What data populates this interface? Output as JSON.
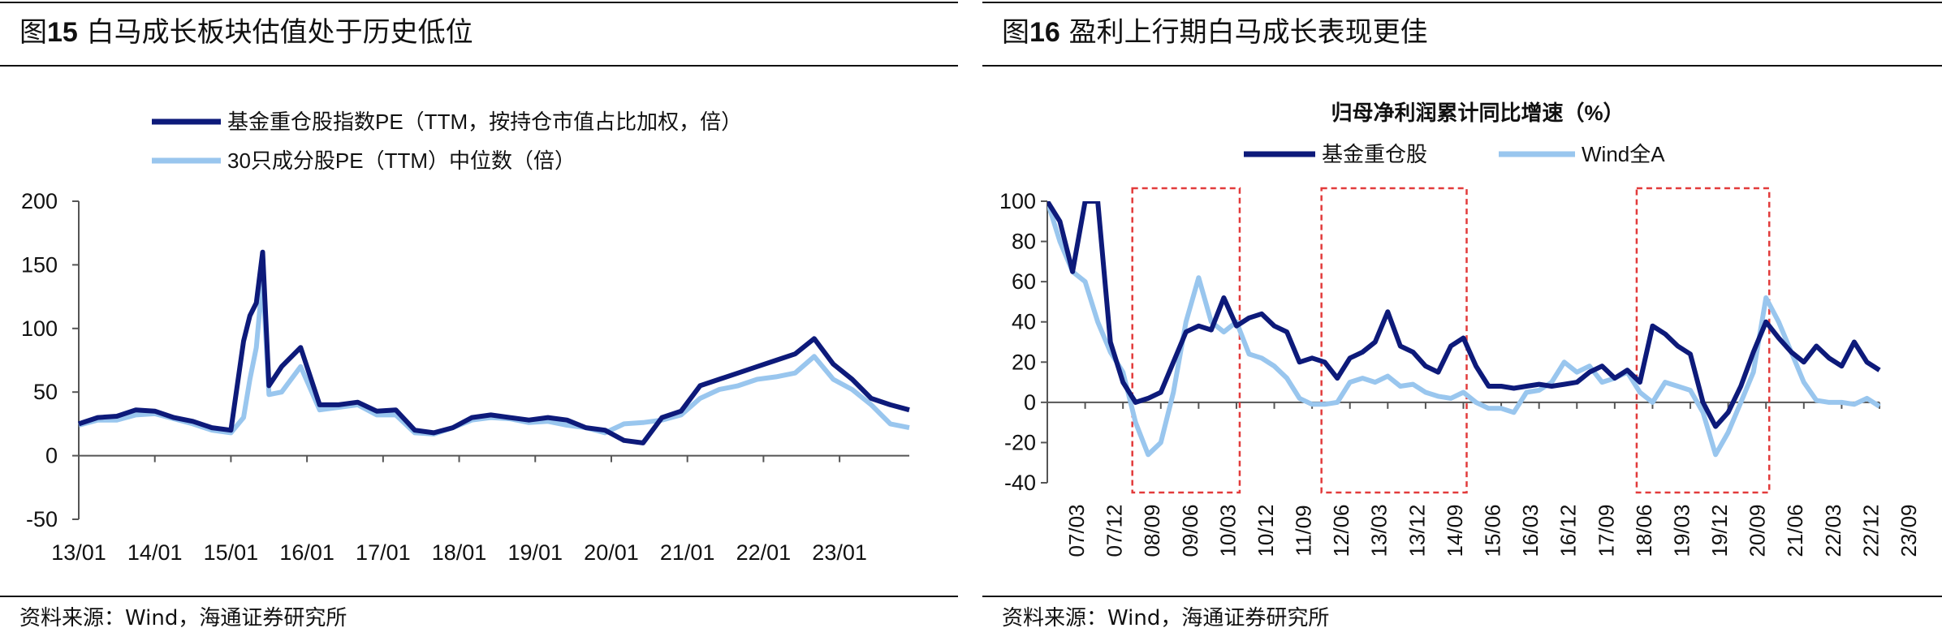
{
  "left": {
    "figure_label": "图",
    "figure_number": "15",
    "figure_title": "白马成长板块估值处于历史低位",
    "source": "资料来源：Wind，海通证券研究所"
  },
  "right": {
    "figure_label": "图",
    "figure_number": "16",
    "figure_title": "盈利上行期白马成长表现更佳",
    "source": "资料来源：Wind，海通证券研究所"
  },
  "chart_data": [
    {
      "type": "line",
      "title": "",
      "xlabel": "",
      "ylabel": "",
      "ylim": [
        -50,
        200
      ],
      "yticks": [
        "200",
        "150",
        "100",
        "50",
        "0",
        "-50"
      ],
      "xticks": [
        "13/01",
        "14/01",
        "15/01",
        "16/01",
        "17/01",
        "18/01",
        "19/01",
        "20/01",
        "21/01",
        "22/01",
        "23/01"
      ],
      "grid": false,
      "legend_position": "top",
      "x": [
        "13/01",
        "13/04",
        "13/07",
        "13/10",
        "14/01",
        "14/04",
        "14/07",
        "14/10",
        "15/01",
        "15/03",
        "15/04",
        "15/05",
        "15/06",
        "15/07",
        "15/09",
        "15/12",
        "16/03",
        "16/06",
        "16/09",
        "16/12",
        "17/03",
        "17/06",
        "17/09",
        "17/12",
        "18/03",
        "18/06",
        "18/09",
        "18/12",
        "19/03",
        "19/06",
        "19/09",
        "19/12",
        "20/03",
        "20/06",
        "20/09",
        "20/12",
        "21/03",
        "21/06",
        "21/09",
        "21/12",
        "22/03",
        "22/06",
        "22/09",
        "22/12",
        "23/03",
        "23/06",
        "23/09",
        "23/12"
      ],
      "series": [
        {
          "name": "基金重仓股指数PE（TTM，按持仓市值占比加权，倍）",
          "color": "#0d1a7a",
          "values": [
            25,
            30,
            31,
            36,
            35,
            30,
            27,
            22,
            20,
            90,
            110,
            120,
            160,
            55,
            70,
            85,
            40,
            40,
            42,
            35,
            36,
            20,
            18,
            22,
            30,
            32,
            30,
            28,
            30,
            28,
            22,
            20,
            12,
            10,
            30,
            35,
            55,
            60,
            65,
            70,
            75,
            80,
            92,
            72,
            60,
            45,
            40,
            36
          ]
        },
        {
          "name": "30只成分股PE（TTM）中位数（倍）",
          "color": "#99c6ee",
          "values": [
            24,
            28,
            28,
            32,
            33,
            29,
            25,
            20,
            18,
            30,
            60,
            85,
            140,
            48,
            50,
            70,
            36,
            38,
            40,
            32,
            32,
            18,
            17,
            22,
            28,
            30,
            29,
            26,
            27,
            24,
            22,
            18,
            25,
            26,
            28,
            32,
            45,
            52,
            55,
            60,
            62,
            65,
            78,
            60,
            52,
            40,
            25,
            22
          ]
        }
      ]
    },
    {
      "type": "line",
      "title": "归母净利润累计同比增速（%）",
      "xlabel": "",
      "ylabel": "",
      "ylim": [
        -40,
        100
      ],
      "yticks": [
        "100",
        "80",
        "60",
        "40",
        "20",
        "0",
        "-20",
        "-40"
      ],
      "xticks": [
        "07/03",
        "07/12",
        "08/09",
        "09/06",
        "10/03",
        "10/12",
        "11/09",
        "12/06",
        "13/03",
        "13/12",
        "14/09",
        "15/06",
        "16/03",
        "16/12",
        "17/09",
        "18/06",
        "19/03",
        "19/12",
        "20/09",
        "21/06",
        "22/03",
        "22/12",
        "23/09"
      ],
      "grid": false,
      "legend_position": "top",
      "highlight_periods": [
        [
          "08/12",
          "10/12"
        ],
        [
          "12/09",
          "15/06"
        ],
        [
          "18/12",
          "21/06"
        ]
      ],
      "x": [
        "07/03",
        "07/06",
        "07/09",
        "07/12",
        "08/03",
        "08/06",
        "08/09",
        "08/12",
        "09/03",
        "09/06",
        "09/09",
        "09/12",
        "10/03",
        "10/06",
        "10/09",
        "10/12",
        "11/03",
        "11/06",
        "11/09",
        "11/12",
        "12/03",
        "12/06",
        "12/09",
        "12/12",
        "13/03",
        "13/06",
        "13/09",
        "13/12",
        "14/03",
        "14/06",
        "14/09",
        "14/12",
        "15/03",
        "15/06",
        "15/09",
        "15/12",
        "16/03",
        "16/06",
        "16/09",
        "16/12",
        "17/03",
        "17/06",
        "17/09",
        "17/12",
        "18/03",
        "18/06",
        "18/09",
        "18/12",
        "19/03",
        "19/06",
        "19/09",
        "19/12",
        "20/03",
        "20/06",
        "20/09",
        "20/12",
        "21/03",
        "21/06",
        "21/09",
        "21/12",
        "22/03",
        "22/06",
        "22/09",
        "22/12",
        "23/03",
        "23/06",
        "23/09"
      ],
      "series": [
        {
          "name": "基金重仓股",
          "color": "#0d1a7a",
          "values": [
            100,
            90,
            65,
            100,
            100,
            30,
            10,
            0,
            2,
            5,
            20,
            35,
            38,
            36,
            52,
            38,
            42,
            44,
            38,
            35,
            20,
            22,
            20,
            12,
            22,
            25,
            30,
            45,
            28,
            25,
            18,
            15,
            28,
            32,
            18,
            8,
            8,
            7,
            8,
            9,
            8,
            9,
            10,
            15,
            18,
            12,
            16,
            10,
            38,
            34,
            28,
            24,
            0,
            -12,
            -5,
            8,
            25,
            40,
            32,
            25,
            20,
            28,
            22,
            18,
            30,
            20,
            16
          ]
        },
        {
          "name": "Wind全A",
          "color": "#99c6ee",
          "values": [
            100,
            80,
            65,
            60,
            40,
            25,
            15,
            -10,
            -26,
            -20,
            5,
            40,
            62,
            40,
            35,
            40,
            24,
            22,
            18,
            12,
            2,
            -1,
            -1,
            0,
            10,
            12,
            10,
            13,
            8,
            9,
            5,
            3,
            2,
            5,
            0,
            -3,
            -3,
            -5,
            5,
            6,
            10,
            20,
            15,
            18,
            10,
            12,
            15,
            5,
            0,
            10,
            8,
            6,
            -5,
            -26,
            -15,
            0,
            15,
            52,
            40,
            25,
            10,
            1,
            0,
            0,
            -1,
            2,
            -2
          ]
        }
      ]
    }
  ]
}
